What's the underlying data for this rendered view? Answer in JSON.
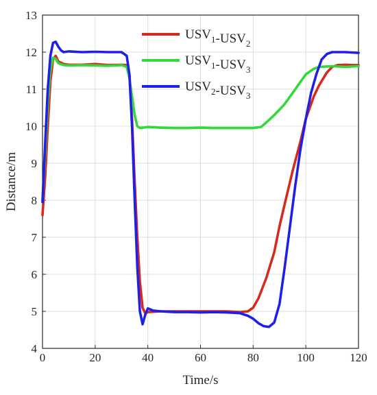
{
  "chart_data": {
    "type": "line",
    "xlabel": "Time/s",
    "ylabel": "Distance/m",
    "xlim": [
      0,
      120
    ],
    "ylim": [
      4,
      13
    ],
    "xticks": [
      "0",
      "20",
      "40",
      "60",
      "80",
      "100",
      "120"
    ],
    "yticks": [
      "4",
      "5",
      "6",
      "7",
      "8",
      "9",
      "10",
      "11",
      "12",
      "13"
    ],
    "grid": true,
    "legend_position": "top-right",
    "series": [
      {
        "name": "USV1-USV2",
        "label_main": [
          "USV",
          "-USV"
        ],
        "label_sub": [
          "1",
          "2"
        ],
        "color": "#d62a1e",
        "points": [
          [
            0,
            7.6
          ],
          [
            1,
            8.6
          ],
          [
            2,
            10.0
          ],
          [
            3,
            11.2
          ],
          [
            4,
            11.8
          ],
          [
            5,
            11.9
          ],
          [
            6,
            11.75
          ],
          [
            8,
            11.68
          ],
          [
            10,
            11.66
          ],
          [
            15,
            11.66
          ],
          [
            20,
            11.68
          ],
          [
            25,
            11.65
          ],
          [
            30,
            11.66
          ],
          [
            32,
            11.65
          ],
          [
            33,
            11.4
          ],
          [
            34,
            10.2
          ],
          [
            35,
            8.5
          ],
          [
            36,
            7.0
          ],
          [
            37,
            5.8
          ],
          [
            38,
            5.1
          ],
          [
            39,
            4.95
          ],
          [
            40,
            4.98
          ],
          [
            45,
            5.0
          ],
          [
            50,
            5.0
          ],
          [
            55,
            5.0
          ],
          [
            60,
            5.0
          ],
          [
            65,
            5.0
          ],
          [
            70,
            5.0
          ],
          [
            75,
            4.98
          ],
          [
            78,
            5.0
          ],
          [
            80,
            5.1
          ],
          [
            82,
            5.35
          ],
          [
            85,
            5.9
          ],
          [
            88,
            6.6
          ],
          [
            90,
            7.3
          ],
          [
            92,
            7.9
          ],
          [
            95,
            8.8
          ],
          [
            98,
            9.6
          ],
          [
            100,
            10.2
          ],
          [
            103,
            10.8
          ],
          [
            105,
            11.1
          ],
          [
            108,
            11.45
          ],
          [
            110,
            11.6
          ],
          [
            112,
            11.65
          ],
          [
            115,
            11.66
          ],
          [
            118,
            11.65
          ],
          [
            120,
            11.65
          ]
        ]
      },
      {
        "name": "USV1-USV3",
        "label_main": [
          "USV",
          "-USV"
        ],
        "label_sub": [
          "1",
          "3"
        ],
        "color": "#35d83a",
        "points": [
          [
            0,
            8.0
          ],
          [
            1,
            9.2
          ],
          [
            2,
            10.6
          ],
          [
            3,
            11.5
          ],
          [
            4,
            11.85
          ],
          [
            5,
            11.82
          ],
          [
            6,
            11.7
          ],
          [
            8,
            11.65
          ],
          [
            10,
            11.64
          ],
          [
            15,
            11.65
          ],
          [
            20,
            11.64
          ],
          [
            25,
            11.63
          ],
          [
            30,
            11.65
          ],
          [
            32,
            11.6
          ],
          [
            33,
            11.3
          ],
          [
            34,
            10.8
          ],
          [
            35,
            10.3
          ],
          [
            36,
            10.0
          ],
          [
            37,
            9.95
          ],
          [
            40,
            9.98
          ],
          [
            45,
            9.96
          ],
          [
            50,
            9.95
          ],
          [
            55,
            9.95
          ],
          [
            60,
            9.96
          ],
          [
            65,
            9.95
          ],
          [
            70,
            9.95
          ],
          [
            75,
            9.95
          ],
          [
            80,
            9.95
          ],
          [
            83,
            9.98
          ],
          [
            85,
            10.1
          ],
          [
            88,
            10.3
          ],
          [
            90,
            10.45
          ],
          [
            92,
            10.6
          ],
          [
            95,
            10.9
          ],
          [
            98,
            11.2
          ],
          [
            100,
            11.4
          ],
          [
            103,
            11.55
          ],
          [
            105,
            11.6
          ],
          [
            110,
            11.62
          ],
          [
            115,
            11.6
          ],
          [
            120,
            11.62
          ]
        ]
      },
      {
        "name": "USV2-USV3",
        "label_main": [
          "USV",
          "-USV"
        ],
        "label_sub": [
          "2",
          "3"
        ],
        "color": "#1f1fe8",
        "points": [
          [
            0,
            7.95
          ],
          [
            1,
            9.5
          ],
          [
            2,
            11.0
          ],
          [
            3,
            11.9
          ],
          [
            4,
            12.25
          ],
          [
            5,
            12.28
          ],
          [
            6,
            12.15
          ],
          [
            7,
            12.05
          ],
          [
            8,
            12.0
          ],
          [
            10,
            12.02
          ],
          [
            15,
            12.0
          ],
          [
            20,
            12.01
          ],
          [
            25,
            12.0
          ],
          [
            30,
            12.0
          ],
          [
            32,
            11.9
          ],
          [
            33,
            11.4
          ],
          [
            34,
            10.0
          ],
          [
            35,
            8.0
          ],
          [
            36,
            6.2
          ],
          [
            37,
            5.0
          ],
          [
            38,
            4.65
          ],
          [
            39,
            4.9
          ],
          [
            40,
            5.08
          ],
          [
            42,
            5.02
          ],
          [
            45,
            5.0
          ],
          [
            50,
            4.98
          ],
          [
            55,
            4.98
          ],
          [
            60,
            4.97
          ],
          [
            65,
            4.98
          ],
          [
            70,
            4.97
          ],
          [
            75,
            4.95
          ],
          [
            78,
            4.88
          ],
          [
            80,
            4.8
          ],
          [
            82,
            4.68
          ],
          [
            84,
            4.6
          ],
          [
            86,
            4.58
          ],
          [
            88,
            4.7
          ],
          [
            90,
            5.2
          ],
          [
            92,
            6.2
          ],
          [
            94,
            7.3
          ],
          [
            96,
            8.4
          ],
          [
            98,
            9.4
          ],
          [
            100,
            10.2
          ],
          [
            102,
            10.9
          ],
          [
            104,
            11.4
          ],
          [
            106,
            11.8
          ],
          [
            108,
            11.95
          ],
          [
            110,
            12.0
          ],
          [
            115,
            12.0
          ],
          [
            120,
            11.98
          ]
        ]
      }
    ]
  }
}
